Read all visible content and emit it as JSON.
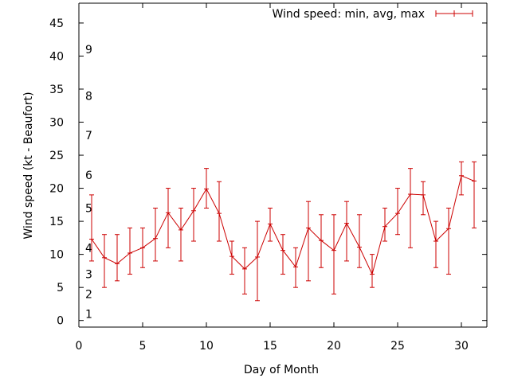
{
  "chart_data": {
    "type": "line",
    "title": "",
    "xlabel": "Day of Month",
    "ylabel": "Wind speed (kt - Beaufort)",
    "xlim": [
      0,
      32
    ],
    "ylim": [
      -1,
      48
    ],
    "xticks": [
      "0",
      "5",
      "10",
      "15",
      "20",
      "25",
      "30"
    ],
    "yticks": [
      "0",
      "5",
      "10",
      "15",
      "20",
      "25",
      "30",
      "35",
      "40",
      "45"
    ],
    "grid": false,
    "legend_position": "top-right",
    "beaufort_scale": [
      {
        "label": "1",
        "value": 1
      },
      {
        "label": "2",
        "value": 4
      },
      {
        "label": "3",
        "value": 7
      },
      {
        "label": "4",
        "value": 11
      },
      {
        "label": "5",
        "value": 17
      },
      {
        "label": "6",
        "value": 22
      },
      {
        "label": "7",
        "value": 28
      },
      {
        "label": "8",
        "value": 34
      },
      {
        "label": "9",
        "value": 41
      }
    ],
    "series": [
      {
        "name": "Wind speed: min, avg, max",
        "color": "#cc0000",
        "x": [
          1,
          2,
          3,
          4,
          5,
          6,
          7,
          8,
          9,
          10,
          11,
          12,
          13,
          14,
          15,
          16,
          17,
          18,
          19,
          20,
          21,
          22,
          23,
          24,
          25,
          26,
          27,
          28,
          29,
          30,
          31
        ],
        "avg": [
          12.3,
          9.5,
          8.6,
          10.2,
          11.0,
          12.4,
          16.3,
          13.7,
          16.6,
          19.9,
          16.2,
          9.7,
          7.8,
          9.6,
          14.6,
          10.6,
          8.1,
          14.0,
          12.1,
          10.6,
          14.7,
          11.1,
          7.0,
          14.2,
          16.2,
          19.1,
          19.0,
          12.0,
          13.9,
          21.9,
          21.1
        ],
        "min": [
          9,
          5,
          6,
          7,
          8,
          9,
          11,
          9,
          12,
          17,
          12,
          7,
          4,
          3,
          12,
          7,
          5,
          6,
          8,
          4,
          9,
          8,
          5,
          12,
          13,
          11,
          16,
          8,
          7,
          19,
          14
        ],
        "max": [
          19,
          13,
          13,
          14,
          14,
          17,
          20,
          17,
          20,
          23,
          21,
          12,
          11,
          15,
          17,
          13,
          11,
          18,
          16,
          16,
          18,
          16,
          10,
          17,
          20,
          23,
          21,
          15,
          17,
          24,
          24
        ]
      }
    ]
  }
}
